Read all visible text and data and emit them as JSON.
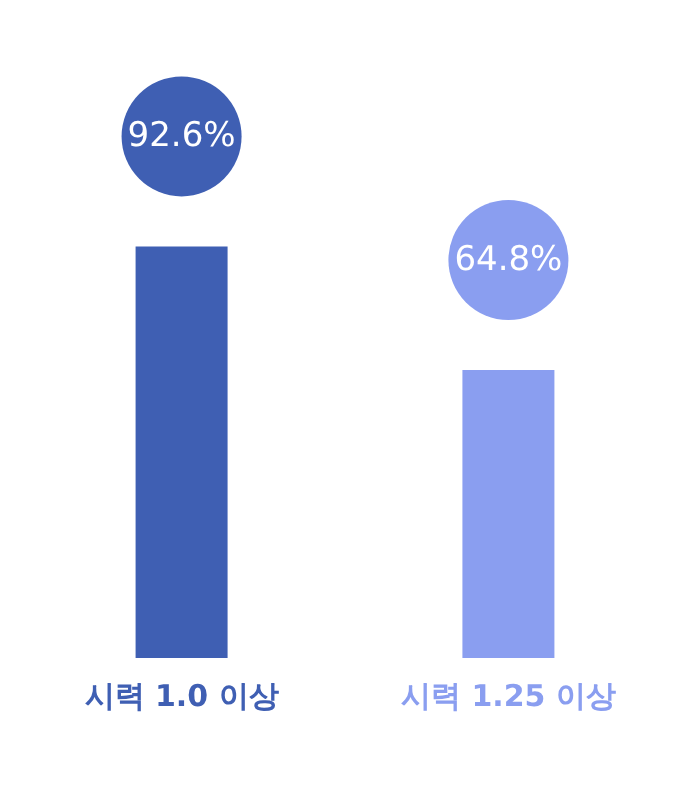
{
  "chart_data": {
    "type": "bar",
    "categories": [
      "시력 1.0 이상",
      "시력 1.25 이상"
    ],
    "values": [
      92.6,
      64.8
    ],
    "colors": [
      "#3f5fb3",
      "#8a9ef0"
    ],
    "value_labels": [
      "92.6%",
      "64.8%"
    ]
  }
}
